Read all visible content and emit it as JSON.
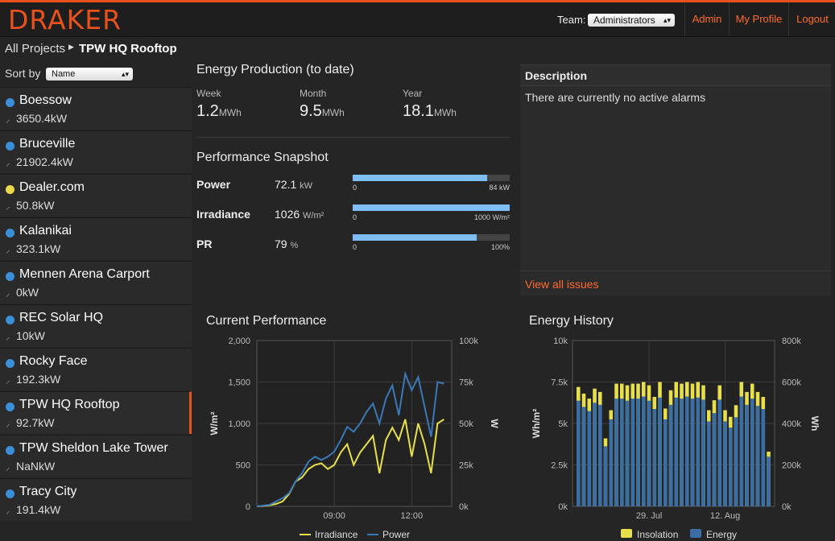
{
  "header": {
    "logo": "DRAKER",
    "team_label": "Team:",
    "team_value": "Administrators",
    "nav": [
      "Admin",
      "My Profile",
      "Logout"
    ]
  },
  "breadcrumb": {
    "root": "All Projects",
    "current": "TPW HQ Rooftop"
  },
  "sidebar": {
    "sort_label": "Sort by",
    "sort_value": "Name",
    "sites": [
      {
        "name": "Boessow",
        "power": "3650.4kW",
        "status_color": "#3b8fd9"
      },
      {
        "name": "Bruceville",
        "power": "21902.4kW",
        "status_color": "#3b8fd9"
      },
      {
        "name": "Dealer.com",
        "power": "50.8kW",
        "status_color": "#e8d84a"
      },
      {
        "name": "Kalanikai",
        "power": "323.1kW",
        "status_color": "#3b8fd9"
      },
      {
        "name": "Mennen Arena Carport",
        "power": "0kW",
        "status_color": "#3b8fd9"
      },
      {
        "name": "REC Solar HQ",
        "power": "10kW",
        "status_color": "#3b8fd9"
      },
      {
        "name": "Rocky Face",
        "power": "192.3kW",
        "status_color": "#3b8fd9"
      },
      {
        "name": "TPW HQ Rooftop",
        "power": "92.7kW",
        "status_color": "#3b8fd9"
      },
      {
        "name": "TPW Sheldon Lake Tower",
        "power": "NaNkW",
        "status_color": "#3b8fd9"
      },
      {
        "name": "Tracy City",
        "power": "191.4kW",
        "status_color": "#3b8fd9"
      }
    ],
    "active_index": 7
  },
  "energy_production": {
    "title": "Energy Production (to date)",
    "items": [
      {
        "label": "Week",
        "value": "1.2",
        "unit": "MWh"
      },
      {
        "label": "Month",
        "value": "9.5",
        "unit": "MWh"
      },
      {
        "label": "Year",
        "value": "18.1",
        "unit": "MWh"
      }
    ]
  },
  "performance_snapshot": {
    "title": "Performance Snapshot",
    "rows": [
      {
        "label": "Power",
        "value": "72.1",
        "unit": "kW",
        "fill": 0.858,
        "min": "0",
        "max": "84 kW"
      },
      {
        "label": "Irradiance",
        "value": "1026",
        "unit": "W/m²",
        "fill": 1.0,
        "min": "0",
        "max": "1000 W/m²"
      },
      {
        "label": "PR",
        "value": "79",
        "unit": "%",
        "fill": 0.79,
        "min": "0",
        "max": "100%"
      }
    ]
  },
  "description": {
    "title": "Description",
    "text": "There are currently no active alarms",
    "link": "View all issues"
  },
  "chart_data": [
    {
      "type": "line",
      "title": "Current Performance",
      "xlabel": "",
      "ylabel": "W/m²",
      "ylabel_right": "W",
      "x_ticks": [
        "09:00",
        "12:00"
      ],
      "y_ticks": [
        "0",
        "500",
        "1,000",
        "1,500",
        "2,000"
      ],
      "y_ticks_right": [
        "0k",
        "25k",
        "50k",
        "75k",
        "100k"
      ],
      "ylim": [
        0,
        2000
      ],
      "ylim_right": [
        0,
        100000
      ],
      "grid": true,
      "legend": "bottom",
      "x_hours": [
        6.0,
        6.25,
        6.5,
        6.75,
        7.0,
        7.25,
        7.5,
        7.75,
        8.0,
        8.25,
        8.5,
        8.75,
        9.0,
        9.25,
        9.5,
        9.75,
        10.0,
        10.25,
        10.5,
        10.75,
        11.0,
        11.25,
        11.5,
        11.75,
        12.0,
        12.25,
        12.5,
        12.75,
        13.0,
        13.25
      ],
      "series": [
        {
          "name": "Irradiance",
          "axis": "left",
          "color": "#e8e04a",
          "values": [
            0,
            5,
            15,
            30,
            60,
            150,
            300,
            350,
            450,
            500,
            520,
            450,
            500,
            650,
            750,
            500,
            650,
            750,
            850,
            400,
            800,
            950,
            800,
            1050,
            600,
            1000,
            750,
            400,
            1000,
            1050
          ]
        },
        {
          "name": "Power",
          "axis": "right",
          "color": "#3a78b8",
          "values": [
            0,
            0.5,
            1,
            3,
            5,
            8,
            15,
            20,
            27,
            30,
            28,
            30,
            33,
            40,
            48,
            45,
            50,
            57,
            62,
            50,
            65,
            73,
            55,
            80,
            70,
            78,
            60,
            42,
            75,
            74
          ]
        }
      ]
    },
    {
      "type": "bar",
      "title": "Energy History",
      "xlabel": "",
      "ylabel": "Wh/m²",
      "ylabel_right": "Wh",
      "x_ticks": [
        "29. Jul",
        "12. Aug"
      ],
      "y_ticks": [
        "0k",
        "2.5k",
        "5k",
        "7.5k",
        "10k"
      ],
      "y_ticks_right": [
        "0k",
        "200k",
        "400k",
        "600k",
        "800k"
      ],
      "ylim": [
        0,
        10000
      ],
      "ylim_right": [
        0,
        800000
      ],
      "grid": true,
      "legend": "bottom",
      "series": [
        {
          "name": "Insolation",
          "axis": "left",
          "color": "#e8e04a",
          "values": [
            7200,
            6800,
            6500,
            7100,
            6900,
            4100,
            5800,
            7400,
            7400,
            7300,
            7400,
            7400,
            7500,
            7300,
            6600,
            7500,
            5900,
            7000,
            7500,
            7400,
            7500,
            7400,
            7500,
            7300,
            5800,
            6400,
            7300,
            5800,
            5400,
            6100,
            7500,
            6900,
            7400,
            6900,
            6600,
            3300
          ]
        },
        {
          "name": "Energy",
          "axis": "right",
          "color": "#3a6ea5",
          "values": [
            510000,
            480000,
            460000,
            500000,
            490000,
            290000,
            420000,
            520000,
            520000,
            510000,
            520000,
            520000,
            530000,
            510000,
            470000,
            525000,
            420000,
            490000,
            525000,
            520000,
            530000,
            520000,
            525000,
            515000,
            410000,
            450000,
            515000,
            410000,
            380000,
            430000,
            530000,
            490000,
            520000,
            485000,
            470000,
            240000
          ]
        }
      ]
    }
  ]
}
